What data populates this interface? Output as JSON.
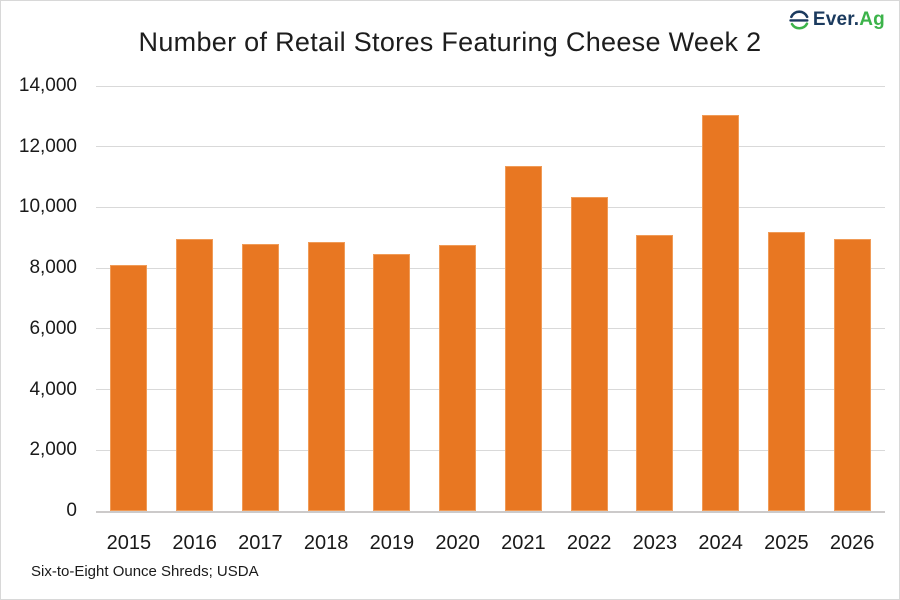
{
  "logo": {
    "brand_primary": "Ever.",
    "brand_secondary": "Ag",
    "icon": "ever-ag-e-icon",
    "navy": "#1b3a5e",
    "green": "#3cb34a"
  },
  "chart_data": {
    "type": "bar",
    "title": "Number of Retail Stores Featuring Cheese Week 2",
    "categories": [
      "2015",
      "2016",
      "2017",
      "2018",
      "2019",
      "2020",
      "2021",
      "2022",
      "2023",
      "2024",
      "2025",
      "2026"
    ],
    "values": [
      8100,
      8950,
      8800,
      8850,
      8450,
      8750,
      11350,
      10350,
      9100,
      13050,
      9200,
      8950
    ],
    "xlabel": "",
    "ylabel": "",
    "ylim": [
      0,
      14000
    ],
    "ytick_step": 2000,
    "grid": "horizontal",
    "legend": "none",
    "bar_color": "#e87722",
    "source_note": "Six-to-Eight Ounce Shreds; USDA"
  }
}
